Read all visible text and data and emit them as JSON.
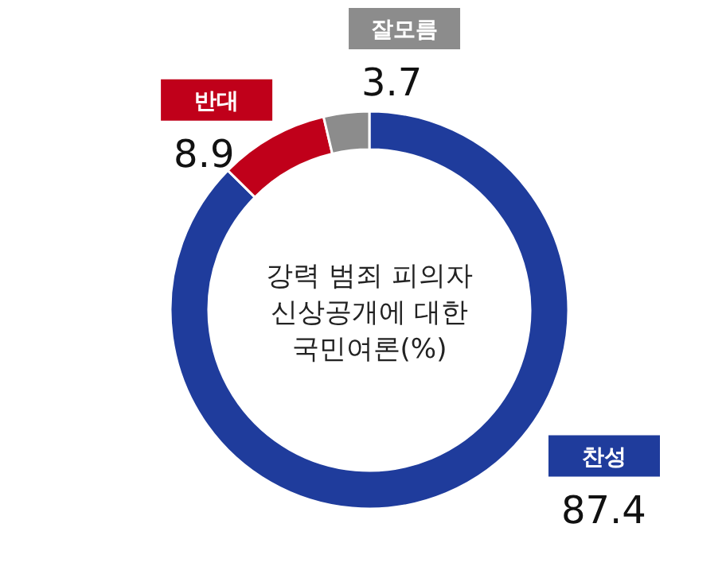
{
  "chart_data": {
    "type": "donut",
    "title": "강력 범죄 피의자 신상공개에 대한 국민여론(%)",
    "categories": [
      "찬성",
      "반대",
      "잘모름"
    ],
    "values": [
      87.4,
      8.9,
      3.7
    ],
    "colors": [
      "#1f3c9c",
      "#c0001a",
      "#8c8c8c"
    ],
    "data_labels": true
  }
}
